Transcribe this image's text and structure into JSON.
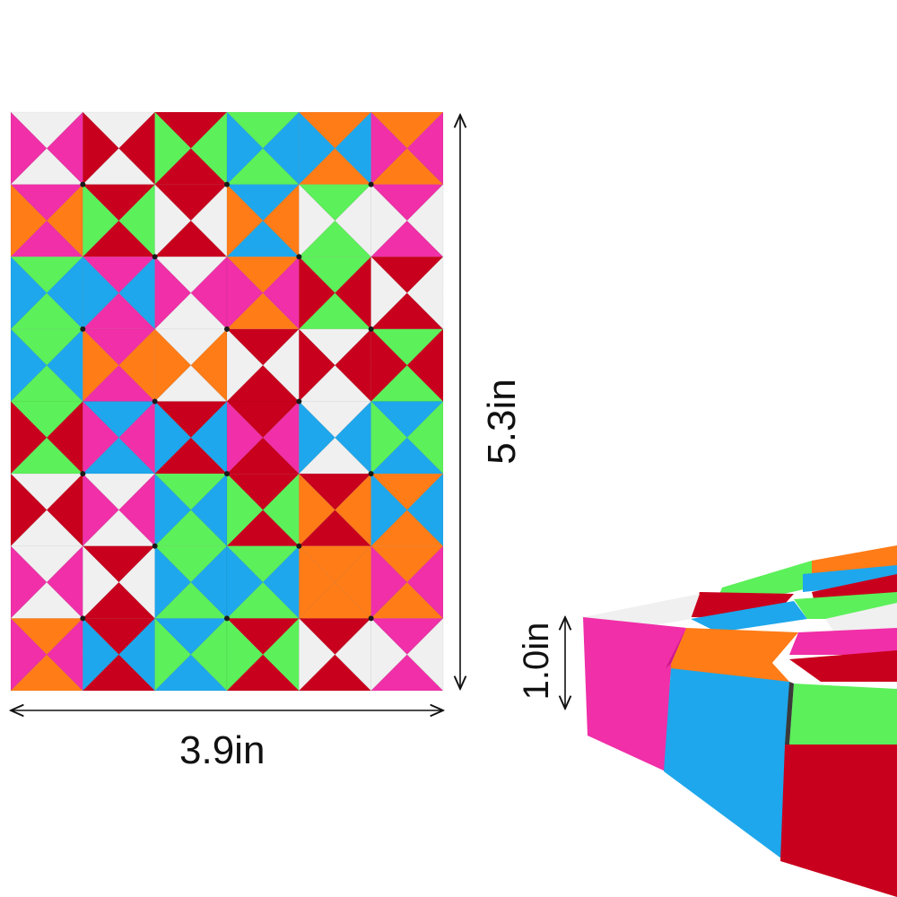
{
  "image": {
    "subject": "Snake puzzle toy",
    "dimensions": {
      "width": "3.9in",
      "height": "5.3in",
      "thickness": "1.0in"
    },
    "palette": {
      "white": "#f0f0f0",
      "red": "#c9001d",
      "green": "#5cf05a",
      "blue": "#1ea7ec",
      "orange": "#ff7c17",
      "magenta": "#f02fa8",
      "gap": "#1a1a1a"
    },
    "grid": {
      "cols": 6,
      "rows": 8,
      "triangles": [
        [
          "w",
          "m",
          "r",
          "w",
          "r",
          "g",
          "b",
          "g",
          "o",
          "b",
          "m",
          "o"
        ],
        [
          "o",
          "m",
          "r",
          "g",
          "w",
          "r",
          "b",
          "o",
          "w",
          "g",
          "m",
          "w"
        ],
        [
          "g",
          "b",
          "b",
          "m",
          "w",
          "m",
          "m",
          "o",
          "g",
          "r",
          "w",
          "r"
        ],
        [
          "b",
          "g",
          "m",
          "o",
          "o",
          "w",
          "r",
          "w",
          "r",
          "w",
          "g",
          "r"
        ],
        [
          "g",
          "r",
          "m",
          "b",
          "r",
          "b",
          "m",
          "r",
          "w",
          "b",
          "g",
          "b"
        ],
        [
          "r",
          "w",
          "w",
          "m",
          "b",
          "g",
          "r",
          "g",
          "o",
          "r",
          "o",
          "b"
        ],
        [
          "w",
          "m",
          "w",
          "r",
          "g",
          "b",
          "b",
          "g",
          "o",
          "o",
          "m",
          "o"
        ],
        [
          "m",
          "o",
          "r",
          "b",
          "g",
          "b",
          "r",
          "g",
          "w",
          "r",
          "m",
          "w"
        ]
      ]
    }
  }
}
